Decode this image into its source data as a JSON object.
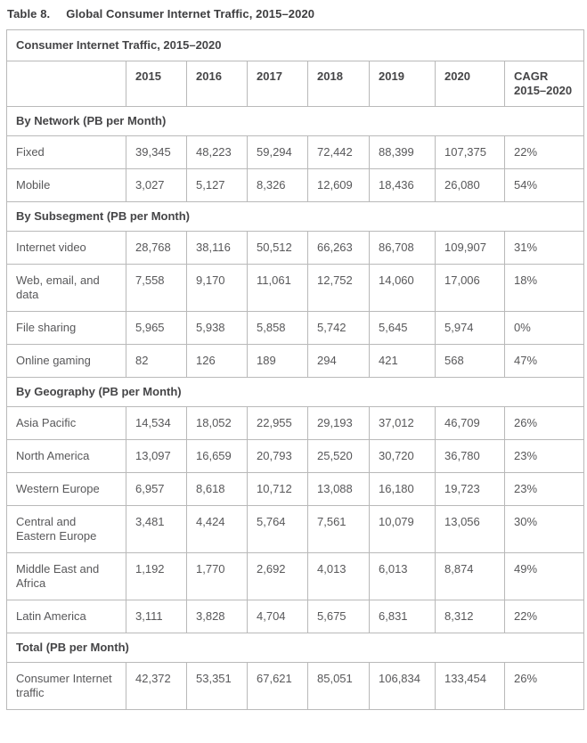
{
  "title": {
    "number": "Table 8.",
    "text": "Global Consumer Internet Traffic, 2015–2020"
  },
  "table": {
    "caption": "Consumer Internet Traffic, 2015–2020",
    "columns": [
      "",
      "2015",
      "2016",
      "2017",
      "2018",
      "2019",
      "2020",
      "CAGR 2015–2020"
    ],
    "sections": [
      {
        "header": "By Network (PB per Month)",
        "rows": [
          {
            "label": "Fixed",
            "values": [
              "39,345",
              "48,223",
              "59,294",
              "72,442",
              "88,399",
              "107,375",
              "22%"
            ]
          },
          {
            "label": "Mobile",
            "values": [
              "3,027",
              "5,127",
              "8,326",
              "12,609",
              "18,436",
              "26,080",
              "54%"
            ]
          }
        ]
      },
      {
        "header": "By Subsegment (PB per Month)",
        "rows": [
          {
            "label": "Internet video",
            "values": [
              "28,768",
              "38,116",
              "50,512",
              "66,263",
              "86,708",
              "109,907",
              "31%"
            ]
          },
          {
            "label": "Web, email, and data",
            "values": [
              "7,558",
              "9,170",
              "11,061",
              "12,752",
              "14,060",
              "17,006",
              "18%"
            ]
          },
          {
            "label": "File sharing",
            "values": [
              "5,965",
              "5,938",
              "5,858",
              "5,742",
              "5,645",
              "5,974",
              "0%"
            ]
          },
          {
            "label": "Online gaming",
            "values": [
              "82",
              "126",
              "189",
              "294",
              "421",
              "568",
              "47%"
            ]
          }
        ]
      },
      {
        "header": "By Geography (PB per Month)",
        "rows": [
          {
            "label": "Asia Pacific",
            "values": [
              "14,534",
              "18,052",
              "22,955",
              "29,193",
              "37,012",
              "46,709",
              "26%"
            ]
          },
          {
            "label": "North America",
            "values": [
              "13,097",
              "16,659",
              "20,793",
              "25,520",
              "30,720",
              "36,780",
              "23%"
            ]
          },
          {
            "label": "Western Europe",
            "values": [
              "6,957",
              "8,618",
              "10,712",
              "13,088",
              "16,180",
              "19,723",
              "23%"
            ]
          },
          {
            "label": "Central and Eastern Europe",
            "values": [
              "3,481",
              "4,424",
              "5,764",
              "7,561",
              "10,079",
              "13,056",
              "30%"
            ]
          },
          {
            "label": "Middle East and Africa",
            "values": [
              "1,192",
              "1,770",
              "2,692",
              "4,013",
              "6,013",
              "8,874",
              "49%"
            ]
          },
          {
            "label": "Latin America",
            "values": [
              "3,111",
              "3,828",
              "4,704",
              "5,675",
              "6,831",
              "8,312",
              "22%"
            ]
          }
        ]
      },
      {
        "header": "Total (PB per Month)",
        "rows": [
          {
            "label": "Consumer Internet traffic",
            "values": [
              "42,372",
              "53,351",
              "67,621",
              "85,051",
              "106,834",
              "133,454",
              "26%"
            ]
          }
        ]
      }
    ]
  }
}
